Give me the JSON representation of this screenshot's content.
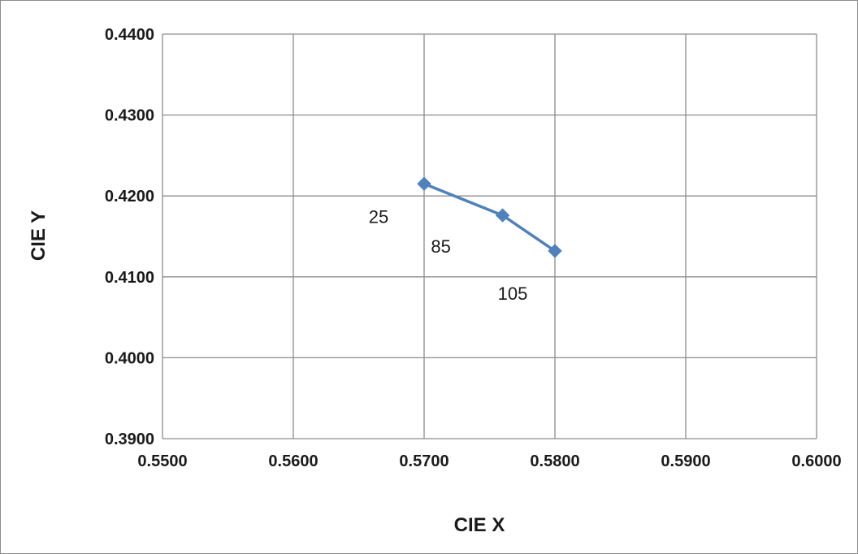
{
  "chart_data": {
    "type": "scatter",
    "xlabel": "CIE X",
    "ylabel": "CIE Y",
    "xlim": [
      0.55,
      0.6
    ],
    "ylim": [
      0.39,
      0.44
    ],
    "x_ticks": [
      "0.5500",
      "0.5600",
      "0.5700",
      "0.5800",
      "0.5900",
      "0.6000"
    ],
    "y_ticks": [
      "0.3900",
      "0.4000",
      "0.4100",
      "0.4200",
      "0.4300",
      "0.4400"
    ],
    "grid": true,
    "lines_connected": true,
    "marker": "diamond",
    "series_color": "#4f81bd",
    "series": [
      {
        "x": [
          0.57,
          0.576,
          0.58
        ],
        "y": [
          0.4215,
          0.4176,
          0.4132
        ],
        "point_labels": [
          "25",
          "85",
          "105"
        ]
      }
    ]
  }
}
